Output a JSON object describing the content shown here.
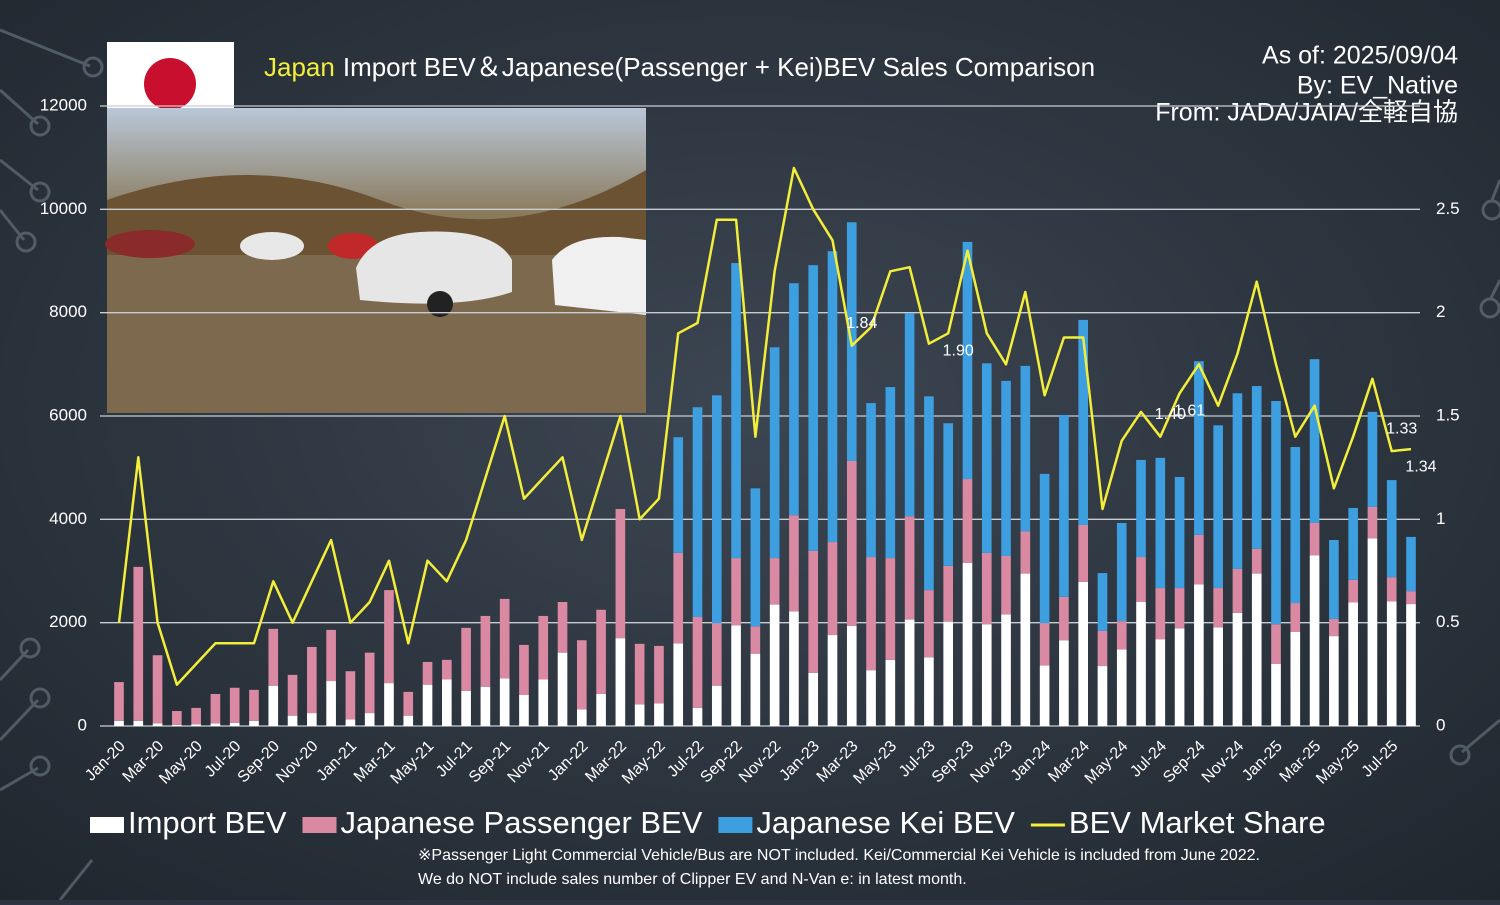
{
  "chart_data": {
    "type": "bar",
    "stacked": true,
    "title_highlight": "Japan",
    "title": "Import BEV＆Japanese(Passenger + Kei)BEV Sales Comparison",
    "as_of": "As of: 2025/09/04",
    "author": "By: EV_Native",
    "source": "From: JADA/JAIA/全軽自協",
    "notes": [
      "※Passenger Light Commercial Vehicle/Bus are NOT included. Kei/Commercial Kei Vehicle is included from June 2022.",
      "We do NOT include sales number of Clipper EV and N-Van e: in latest month."
    ],
    "categories": [
      "Jan-20",
      null,
      "Mar-20",
      null,
      "May-20",
      null,
      "Jul-20",
      null,
      "Sep-20",
      null,
      "Nov-20",
      null,
      "Jan-21",
      null,
      "Mar-21",
      null,
      "May-21",
      null,
      "Jul-21",
      null,
      "Sep-21",
      null,
      "Nov-21",
      null,
      "Jan-22",
      null,
      "Mar-22",
      null,
      "May-22",
      null,
      "Jul-22",
      null,
      "Sep-22",
      null,
      "Nov-22",
      null,
      "Jan-23",
      null,
      "Mar-23",
      null,
      "May-23",
      null,
      "Jul-23",
      null,
      "Sep-23",
      null,
      "Nov-23",
      null,
      "Jan-24",
      null,
      "Mar-24",
      null,
      "May-24",
      null,
      "Jul-24",
      null,
      "Sep-24",
      null,
      "Nov-24",
      null,
      "Jan-25",
      null,
      "Mar-25",
      null,
      "May-25",
      null,
      "Jul-25",
      null
    ],
    "series": [
      {
        "name": "Import BEV",
        "color": "#ffffff",
        "values": [
          100,
          100,
          50,
          20,
          30,
          50,
          60,
          100,
          780,
          200,
          250,
          870,
          130,
          250,
          830,
          200,
          800,
          900,
          680,
          760,
          920,
          600,
          900,
          1420,
          320,
          620,
          1700,
          420,
          440,
          1600,
          350,
          780,
          1950,
          1400,
          2350,
          2220,
          1030,
          1760,
          1940,
          1080,
          1280,
          2060,
          1330,
          2020,
          3160,
          1970,
          2160,
          2950,
          1170,
          1660,
          2790,
          1160,
          1480,
          2400,
          1680,
          1890,
          2740,
          1910,
          2190,
          2950,
          1200,
          1820,
          3300,
          1740,
          2390,
          3630,
          2410,
          2360
        ]
      },
      {
        "name": "Japanese Passenger BEV",
        "color": "#d98aa2",
        "values": [
          750,
          2980,
          1320,
          270,
          320,
          570,
          680,
          600,
          1100,
          790,
          1280,
          990,
          930,
          1170,
          1800,
          460,
          440,
          380,
          1220,
          1370,
          1540,
          970,
          1230,
          980,
          1340,
          1630,
          2500,
          1170,
          1110,
          1750,
          1760,
          1210,
          1300,
          530,
          900,
          1860,
          2360,
          1800,
          3190,
          2190,
          1970,
          2000,
          1300,
          1080,
          1620,
          1380,
          1130,
          820,
          820,
          840,
          1100,
          680,
          550,
          870,
          990,
          780,
          960,
          760,
          850,
          480,
          770,
          560,
          630,
          330,
          440,
          610,
          470,
          250
        ]
      },
      {
        "name": "Japanese Kei BEV",
        "color": "#3d9ee0",
        "values": [
          null,
          null,
          null,
          null,
          null,
          null,
          null,
          null,
          null,
          null,
          null,
          null,
          null,
          null,
          null,
          null,
          null,
          null,
          null,
          null,
          null,
          null,
          null,
          null,
          null,
          null,
          null,
          null,
          null,
          2240,
          4060,
          4410,
          5710,
          2670,
          4080,
          4490,
          5530,
          5630,
          4620,
          2980,
          3310,
          3930,
          3750,
          2760,
          4590,
          3670,
          3390,
          3200,
          2890,
          3520,
          3970,
          1120,
          1900,
          1880,
          2520,
          2150,
          3360,
          3150,
          3400,
          3150,
          4320,
          3020,
          3170,
          1530,
          1390,
          1840,
          1880,
          1050
        ]
      },
      {
        "name": "BEV Market Share",
        "color": "#f3ee3a",
        "type": "line",
        "axis": "y2",
        "values": [
          0.5,
          1.3,
          0.5,
          0.2,
          0.3,
          0.4,
          0.4,
          0.4,
          0.7,
          0.5,
          0.7,
          0.9,
          0.5,
          0.6,
          0.8,
          0.4,
          0.8,
          0.7,
          0.9,
          1.2,
          1.5,
          1.1,
          1.2,
          1.3,
          0.9,
          1.2,
          1.5,
          1.0,
          1.1,
          1.9,
          1.95,
          2.45,
          2.45,
          1.4,
          2.2,
          2.7,
          2.5,
          2.35,
          1.84,
          1.93,
          2.2,
          2.22,
          1.85,
          1.9,
          2.3,
          1.9,
          1.75,
          2.1,
          1.6,
          1.88,
          1.88,
          1.05,
          1.38,
          1.52,
          1.4,
          1.61,
          1.75,
          1.55,
          1.8,
          2.15,
          1.75,
          1.4,
          1.55,
          1.15,
          1.4,
          1.68,
          1.33,
          1.34
        ],
        "value_labels": [
          null,
          null,
          null,
          null,
          null,
          null,
          null,
          null,
          null,
          null,
          null,
          null,
          null,
          null,
          null,
          null,
          null,
          null,
          null,
          null,
          null,
          null,
          null,
          null,
          null,
          null,
          null,
          null,
          null,
          null,
          null,
          null,
          null,
          null,
          null,
          null,
          null,
          null,
          "1.84",
          null,
          null,
          null,
          null,
          "1.90",
          null,
          null,
          null,
          null,
          null,
          null,
          null,
          null,
          null,
          null,
          "1.40",
          "1.61",
          null,
          null,
          null,
          null,
          null,
          null,
          null,
          null,
          null,
          null,
          "1.33",
          "1.34"
        ]
      }
    ],
    "ylim": [
      0,
      12000
    ],
    "yticks": [
      0,
      2000,
      4000,
      6000,
      8000,
      10000,
      12000
    ],
    "y2lim": [
      0,
      3
    ],
    "y2ticks": [
      0,
      0.5,
      1,
      1.5,
      2,
      2.5
    ],
    "grid": true,
    "legend": "bottom"
  }
}
